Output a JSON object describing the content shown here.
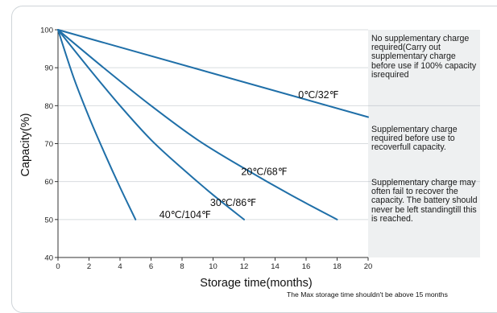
{
  "colors": {
    "line": "#1f6fa8",
    "zone_bg": "#eef0f1",
    "grid": "#d8dcdf",
    "axis": "#333333"
  },
  "zones": [
    {
      "text": "No supplementary charge required(Carry out supplementary charge before use if 100% capacity isrequired"
    },
    {
      "text": "Supplementary charge required before use to recoverfull capacity."
    },
    {
      "text": "Supplementary charge may often fail to recover the capacity. The battery should never be left standingtill this is reached."
    }
  ],
  "footnote": "The Max storage time shouldn't be above 15 months",
  "chart_data": {
    "type": "line",
    "xlabel": "Storage time(months)",
    "ylabel": "Capacity(%)",
    "xlim": [
      0,
      20
    ],
    "ylim": [
      40,
      100
    ],
    "xticks": [
      "0",
      "2",
      "4",
      "6",
      "8",
      "10",
      "12",
      "14",
      "16",
      "18",
      "20"
    ],
    "yticks": [
      "40",
      "50",
      "60",
      "70",
      "80",
      "90",
      "100"
    ],
    "grid": "horizontal",
    "zone_boundaries_y": [
      80,
      60
    ],
    "series": [
      {
        "name": "0℃/32℉",
        "x": [
          0,
          20
        ],
        "y": [
          100,
          77
        ]
      },
      {
        "name": "20℃/68℉",
        "x": [
          0,
          3,
          6,
          9,
          12,
          15,
          18
        ],
        "y": [
          100,
          89.8,
          80,
          71,
          63.5,
          56.5,
          50
        ]
      },
      {
        "name": "30℃/86℉",
        "x": [
          0,
          2,
          4,
          6,
          8,
          10,
          12
        ],
        "y": [
          100,
          89.8,
          80,
          71,
          63.5,
          56.5,
          50
        ]
      },
      {
        "name": "40℃/104℉",
        "x": [
          0,
          1,
          2,
          3,
          4,
          5
        ],
        "y": [
          100,
          87.5,
          77,
          67.5,
          58.5,
          50
        ]
      }
    ]
  }
}
